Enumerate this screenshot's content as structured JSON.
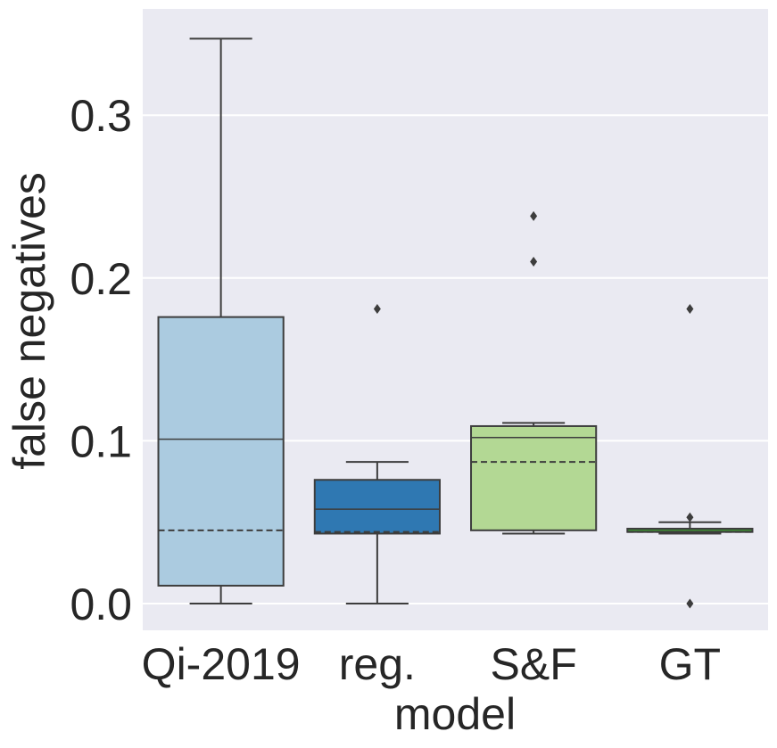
{
  "chart_data": {
    "type": "box",
    "xlabel": "model",
    "ylabel": "false negatives",
    "ylim": [
      -0.017,
      0.365
    ],
    "y_ticks": [
      0.0,
      0.1,
      0.2,
      0.3
    ],
    "y_tick_labels": [
      "0.0",
      "0.1",
      "0.2",
      "0.3"
    ],
    "grid": true,
    "legend": "none",
    "categories": [
      "Qi-2019",
      "reg.",
      "S&F",
      "GT"
    ],
    "boxes": [
      {
        "name": "Qi-2019",
        "whisker_low": 0.0,
        "q1": 0.011,
        "median": 0.101,
        "q3": 0.176,
        "whisker_high": 0.347,
        "mean": 0.045,
        "outliers": [],
        "color": "#abcbe0"
      },
      {
        "name": "reg.",
        "whisker_low": 0.0,
        "q1": 0.043,
        "median": 0.058,
        "q3": 0.076,
        "whisker_high": 0.087,
        "mean": 0.044,
        "outliers": [
          0.181
        ],
        "color": "#2f78b2"
      },
      {
        "name": "S&F",
        "whisker_low": 0.043,
        "q1": 0.045,
        "median": 0.102,
        "q3": 0.109,
        "whisker_high": 0.111,
        "mean": 0.087,
        "outliers": [
          0.238,
          0.21
        ],
        "color": "#b3d894"
      },
      {
        "name": "GT",
        "whisker_low": 0.043,
        "q1": 0.044,
        "median": 0.044,
        "q3": 0.046,
        "whisker_high": 0.05,
        "mean": 0.044,
        "outliers": [
          0.181,
          0.053,
          0.0
        ],
        "color": "#3f8a34"
      }
    ]
  }
}
